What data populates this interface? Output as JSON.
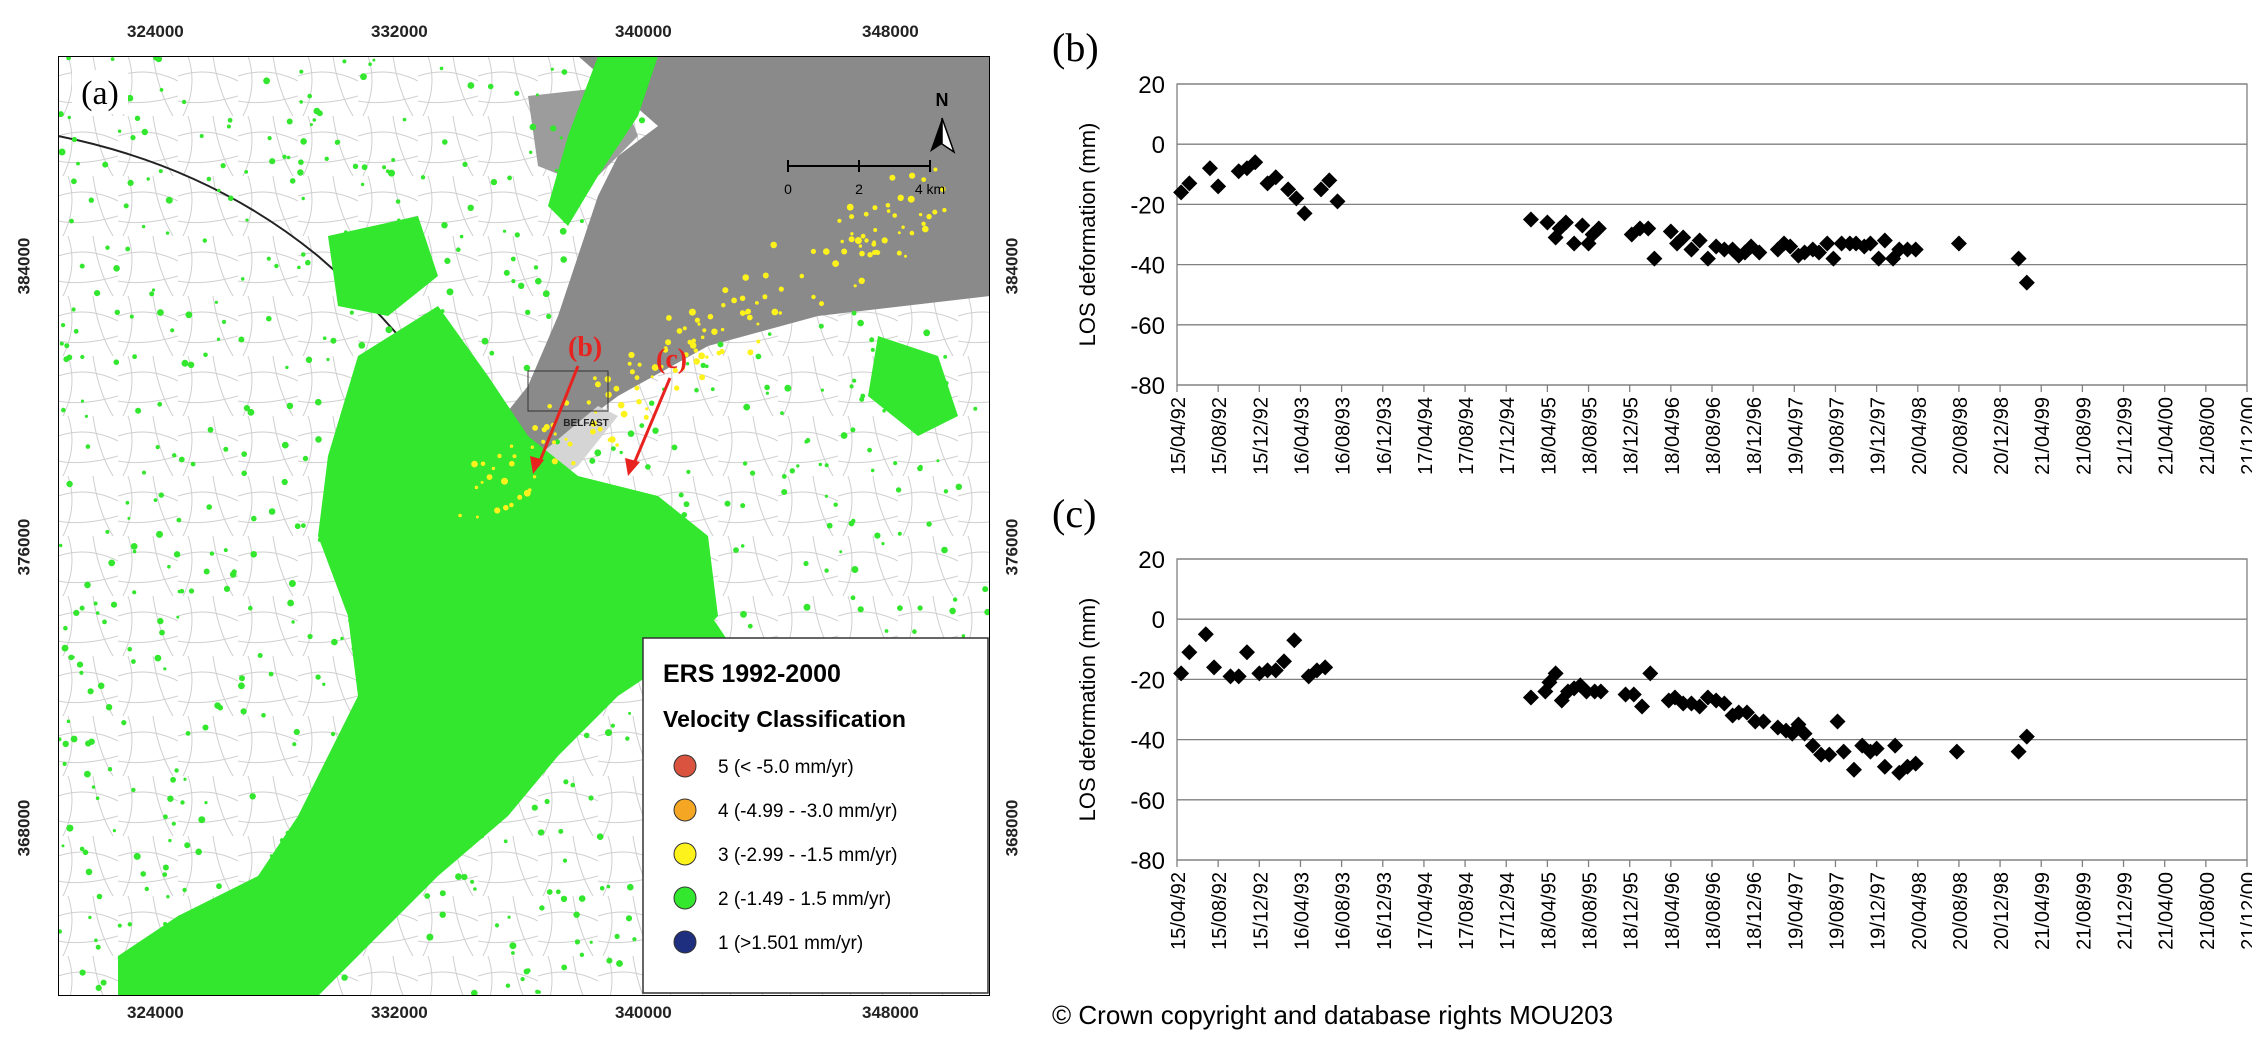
{
  "map": {
    "panel_label": "(a)",
    "north_label": "N",
    "scale": {
      "labels": [
        "0",
        "2",
        "4 km"
      ]
    },
    "place_label": "BELFAST",
    "callouts": [
      "(b)",
      "(c)"
    ],
    "x_ticks": [
      "324000",
      "332000",
      "340000",
      "348000"
    ],
    "y_ticks": [
      "384000",
      "376000",
      "368000"
    ],
    "legend": {
      "title": "ERS  1992-2000",
      "subtitle": "Velocity Classification",
      "items": [
        {
          "label": "5 (< -5.0 mm/yr)",
          "color": "#d9533f"
        },
        {
          "label": "4 (-4.99 - -3.0 mm/yr)",
          "color": "#f5a623"
        },
        {
          "label": "3 (-2.99 - -1.5 mm/yr)",
          "color": "#fdf21c"
        },
        {
          "label": "2 (-1.49 - 1.5 mm/yr)",
          "color": "#33e62e"
        },
        {
          "label": "1 (>1.501 mm/yr)",
          "color": "#1f2f80"
        }
      ]
    }
  },
  "colors": {
    "land_green": "#33e62e",
    "water_grey": "#8a8a8a",
    "callout_red": "#e8231f"
  },
  "chart_data": [
    {
      "panel_label": "(b)",
      "type": "scatter",
      "ylabel": "LOS deformation (mm)",
      "ylim": [
        -80,
        20
      ],
      "yticks": [
        20,
        0,
        -20,
        -40,
        -60,
        -80
      ],
      "xticks": [
        "15/04/92",
        "15/08/92",
        "15/12/92",
        "16/04/93",
        "16/08/93",
        "16/12/93",
        "17/04/94",
        "17/08/94",
        "17/12/94",
        "18/04/95",
        "18/08/95",
        "18/12/95",
        "18/04/96",
        "18/08/96",
        "18/12/96",
        "19/04/97",
        "19/08/97",
        "19/12/97",
        "20/04/98",
        "20/08/98",
        "20/12/98",
        "21/04/99",
        "21/08/99",
        "21/12/99",
        "21/04/00",
        "21/08/00",
        "21/12/00"
      ],
      "points": [
        [
          0.1,
          -16
        ],
        [
          0.3,
          -13
        ],
        [
          0.8,
          -8
        ],
        [
          1.0,
          -14
        ],
        [
          1.5,
          -9
        ],
        [
          1.7,
          -8
        ],
        [
          1.9,
          -6
        ],
        [
          2.2,
          -13
        ],
        [
          2.4,
          -11
        ],
        [
          2.7,
          -15
        ],
        [
          2.9,
          -18
        ],
        [
          3.1,
          -23
        ],
        [
          3.5,
          -15
        ],
        [
          3.7,
          -12
        ],
        [
          3.9,
          -19
        ],
        [
          8.6,
          -25
        ],
        [
          9.0,
          -26
        ],
        [
          9.2,
          -31
        ],
        [
          9.3,
          -28
        ],
        [
          9.45,
          -26
        ],
        [
          9.65,
          -33
        ],
        [
          9.85,
          -27
        ],
        [
          10.0,
          -33
        ],
        [
          10.1,
          -30
        ],
        [
          10.25,
          -28
        ],
        [
          11.05,
          -30
        ],
        [
          11.25,
          -28
        ],
        [
          11.45,
          -28
        ],
        [
          11.6,
          -38
        ],
        [
          12.0,
          -29
        ],
        [
          12.15,
          -33
        ],
        [
          12.3,
          -31
        ],
        [
          12.5,
          -35
        ],
        [
          12.7,
          -32
        ],
        [
          12.9,
          -38
        ],
        [
          13.1,
          -34
        ],
        [
          13.3,
          -35
        ],
        [
          13.5,
          -35
        ],
        [
          13.65,
          -37
        ],
        [
          13.8,
          -36
        ],
        [
          13.95,
          -34
        ],
        [
          14.15,
          -36
        ],
        [
          14.6,
          -35
        ],
        [
          14.75,
          -33
        ],
        [
          14.9,
          -34
        ],
        [
          15.1,
          -37
        ],
        [
          15.25,
          -36
        ],
        [
          15.45,
          -35
        ],
        [
          15.6,
          -36
        ],
        [
          15.8,
          -33
        ],
        [
          15.95,
          -38
        ],
        [
          16.15,
          -33
        ],
        [
          16.35,
          -33
        ],
        [
          16.5,
          -33
        ],
        [
          16.7,
          -34
        ],
        [
          16.85,
          -33
        ],
        [
          17.05,
          -38
        ],
        [
          17.2,
          -32
        ],
        [
          17.4,
          -38
        ],
        [
          17.55,
          -35
        ],
        [
          17.75,
          -35
        ],
        [
          17.95,
          -35
        ],
        [
          19.0,
          -33
        ],
        [
          20.45,
          -38
        ],
        [
          20.65,
          -46
        ]
      ]
    },
    {
      "panel_label": "(c)",
      "type": "scatter",
      "ylabel": "LOS deformation (mm)",
      "ylim": [
        -80,
        20
      ],
      "yticks": [
        20,
        0,
        -20,
        -40,
        -60,
        -80
      ],
      "xticks": [
        "15/04/92",
        "15/08/92",
        "15/12/92",
        "16/04/93",
        "16/08/93",
        "16/12/93",
        "17/04/94",
        "17/08/94",
        "17/12/94",
        "18/04/95",
        "18/08/95",
        "18/12/95",
        "18/04/96",
        "18/08/96",
        "18/12/96",
        "19/04/97",
        "19/08/97",
        "19/12/97",
        "20/04/98",
        "20/08/98",
        "20/12/98",
        "21/04/99",
        "21/08/99",
        "21/12/99",
        "21/04/00",
        "21/08/00",
        "21/12/00"
      ],
      "points": [
        [
          0.1,
          -18
        ],
        [
          0.3,
          -11
        ],
        [
          0.7,
          -5
        ],
        [
          0.9,
          -16
        ],
        [
          1.3,
          -19
        ],
        [
          1.5,
          -19
        ],
        [
          1.7,
          -11
        ],
        [
          2.0,
          -18
        ],
        [
          2.2,
          -17
        ],
        [
          2.4,
          -17
        ],
        [
          2.6,
          -14
        ],
        [
          2.85,
          -7
        ],
        [
          3.2,
          -19
        ],
        [
          3.4,
          -17
        ],
        [
          3.6,
          -16
        ],
        [
          8.6,
          -26
        ],
        [
          8.95,
          -24
        ],
        [
          9.05,
          -21
        ],
        [
          9.2,
          -18
        ],
        [
          9.35,
          -27
        ],
        [
          9.5,
          -24
        ],
        [
          9.65,
          -23
        ],
        [
          9.8,
          -22
        ],
        [
          9.95,
          -24
        ],
        [
          10.15,
          -24
        ],
        [
          10.3,
          -24
        ],
        [
          10.9,
          -25
        ],
        [
          11.1,
          -25
        ],
        [
          11.3,
          -29
        ],
        [
          11.5,
          -18
        ],
        [
          11.95,
          -27
        ],
        [
          12.1,
          -26
        ],
        [
          12.3,
          -28
        ],
        [
          12.5,
          -28
        ],
        [
          12.7,
          -29
        ],
        [
          12.9,
          -26
        ],
        [
          13.1,
          -27
        ],
        [
          13.3,
          -28
        ],
        [
          13.5,
          -32
        ],
        [
          13.65,
          -31
        ],
        [
          13.85,
          -31
        ],
        [
          14.05,
          -34
        ],
        [
          14.25,
          -34
        ],
        [
          14.6,
          -36
        ],
        [
          14.8,
          -37
        ],
        [
          14.95,
          -38
        ],
        [
          15.1,
          -35
        ],
        [
          15.25,
          -38
        ],
        [
          15.45,
          -42
        ],
        [
          15.65,
          -45
        ],
        [
          15.85,
          -45
        ],
        [
          16.05,
          -34
        ],
        [
          16.2,
          -44
        ],
        [
          16.45,
          -50
        ],
        [
          16.65,
          -42
        ],
        [
          16.85,
          -44
        ],
        [
          17.0,
          -43
        ],
        [
          17.2,
          -49
        ],
        [
          17.45,
          -42
        ],
        [
          17.55,
          -51
        ],
        [
          17.75,
          -49
        ],
        [
          17.95,
          -48
        ],
        [
          18.95,
          -44
        ],
        [
          20.45,
          -44
        ],
        [
          20.65,
          -39
        ]
      ]
    }
  ],
  "copyright": "© Crown copyright and database rights MOU203"
}
